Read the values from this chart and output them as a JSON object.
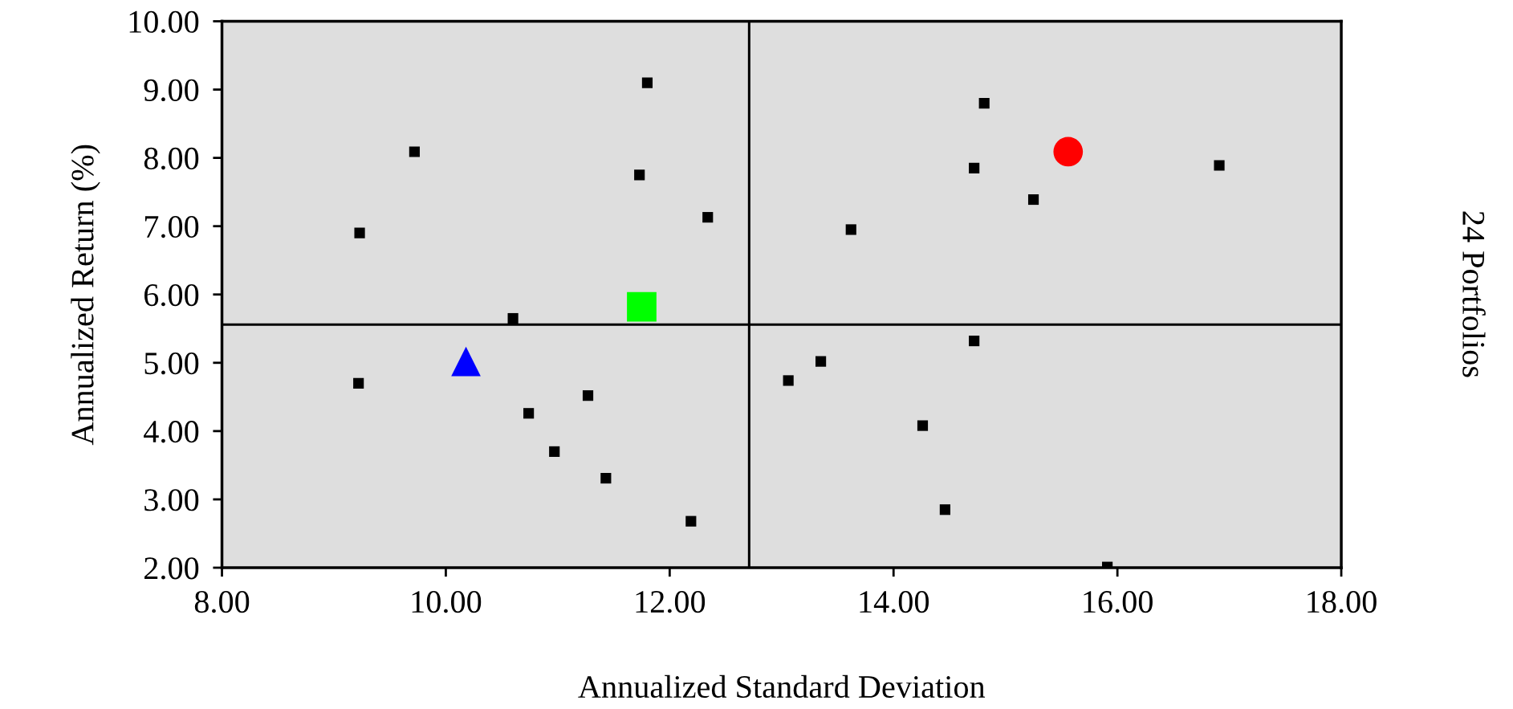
{
  "chart_data": {
    "type": "scatter",
    "xlabel": "Annualized Standard Deviation",
    "ylabel": "Annualized Return (%)",
    "annotations": [
      "24 Portfolios"
    ],
    "xlim": [
      8,
      18
    ],
    "xticks": [
      {
        "value": 8,
        "label": "8.00"
      },
      {
        "value": 10,
        "label": "10.00"
      },
      {
        "value": 12,
        "label": "12.00"
      },
      {
        "value": 14,
        "label": "14.00"
      },
      {
        "value": 16,
        "label": "16.00"
      },
      {
        "value": 18,
        "label": "18.00"
      }
    ],
    "ylim": [
      2,
      10
    ],
    "yticks": [
      {
        "value": 2,
        "label": "2.00"
      },
      {
        "value": 3,
        "label": "3.00"
      },
      {
        "value": 4,
        "label": "4.00"
      },
      {
        "value": 5,
        "label": "5.00"
      },
      {
        "value": 6,
        "label": "6.00"
      },
      {
        "value": 7,
        "label": "7.00"
      },
      {
        "value": 8,
        "label": "8.00"
      },
      {
        "value": 9,
        "label": "9.00"
      },
      {
        "value": 10,
        "label": "10.00"
      }
    ],
    "grid": false,
    "ref_lines": [
      {
        "axis": "x",
        "value": 12.71,
        "color": "#000000"
      },
      {
        "axis": "y",
        "value": 5.56,
        "color": "#000000"
      }
    ],
    "series": [
      {
        "color": "#000000",
        "marker": "square",
        "x": [
          11.8,
          9.72,
          11.73,
          12.34,
          9.23,
          10.6,
          9.22,
          10.74,
          11.27,
          10.97,
          11.43,
          12.19,
          14.81,
          14.72,
          15.25,
          16.91,
          13.62,
          14.72,
          13.35,
          13.06,
          14.26,
          14.46,
          15.91
        ],
        "values": [
          9.1,
          8.09,
          7.75,
          7.13,
          6.9,
          5.65,
          4.7,
          4.26,
          4.52,
          3.7,
          3.31,
          2.68,
          8.8,
          7.85,
          7.39,
          7.89,
          6.95,
          5.32,
          5.02,
          4.74,
          4.08,
          2.85,
          2.01
        ]
      },
      {
        "color": "#ff0000",
        "marker": "circle",
        "x": [
          15.56
        ],
        "values": [
          8.09
        ]
      },
      {
        "color": "#00ff00",
        "marker": "square",
        "x": [
          11.75
        ],
        "values": [
          5.82
        ]
      },
      {
        "color": "#0000ff",
        "marker": "triangle",
        "x": [
          10.18
        ],
        "values": [
          5.02
        ]
      }
    ]
  }
}
